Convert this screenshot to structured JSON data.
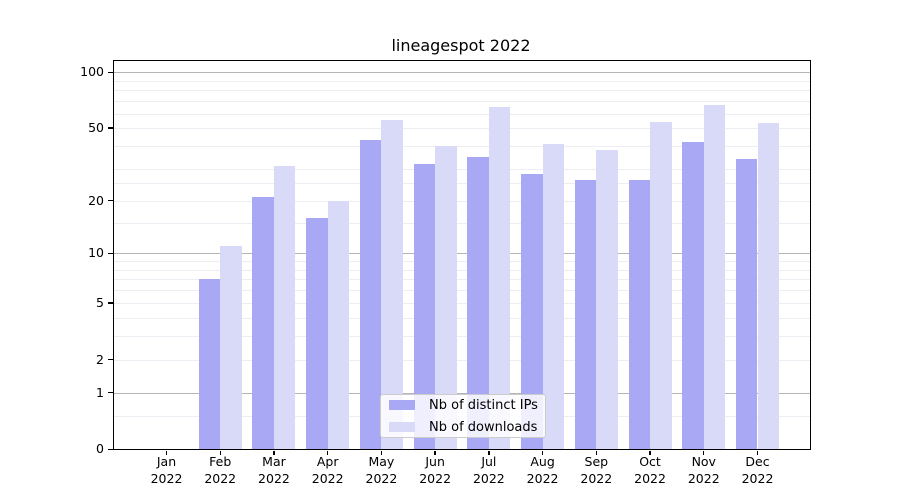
{
  "title": "lineagespot 2022",
  "chart_data": {
    "type": "bar",
    "title": "lineagespot 2022",
    "yscale": "log1p",
    "ylim": [
      0,
      115
    ],
    "grid": true,
    "legend_position": "bottom-center",
    "categories": [
      "Jan 2022",
      "Feb 2022",
      "Mar 2022",
      "Apr 2022",
      "May 2022",
      "Jun 2022",
      "Jul 2022",
      "Aug 2022",
      "Sep 2022",
      "Oct 2022",
      "Nov 2022",
      "Dec 2022"
    ],
    "series": [
      {
        "key": "distinct-ips",
        "name": "Nb of distinct IPs",
        "color": "#a8a8f4",
        "values": [
          0,
          7,
          21,
          16,
          43,
          32,
          35,
          28,
          26,
          26,
          42,
          34
        ]
      },
      {
        "key": "downloads",
        "name": "Nb of downloads",
        "color": "#d9d9f8",
        "values": [
          0,
          11,
          31,
          20,
          55,
          40,
          65,
          41,
          38,
          54,
          67,
          53
        ]
      }
    ],
    "yticks": [
      0,
      1,
      2,
      5,
      10,
      20,
      50,
      100
    ],
    "gridlines_major": [
      1,
      10,
      100
    ],
    "gridlines_minor": [
      0.5,
      2,
      3,
      4,
      5,
      6,
      7,
      8,
      9,
      15,
      20,
      25,
      30,
      40,
      50,
      60,
      70,
      80,
      90
    ],
    "grid_major_color": "#b5b5b5",
    "grid_minor_color": "#ededf3",
    "axis_color": "#000000"
  }
}
